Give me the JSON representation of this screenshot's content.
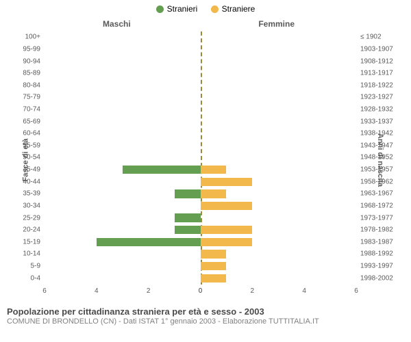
{
  "legend": {
    "male": {
      "label": "Stranieri",
      "color": "#639e51"
    },
    "female": {
      "label": "Straniere",
      "color": "#f2b84b"
    }
  },
  "columns": {
    "left": "Maschi",
    "right": "Femmine"
  },
  "axis_titles": {
    "left": "Fasce di età",
    "right": "Anni di nascita"
  },
  "chart": {
    "type": "population-pyramid",
    "x_max": 6,
    "x_ticks": [
      6,
      4,
      2,
      0,
      0,
      2,
      4,
      6
    ],
    "centerline_color": "#9a8a3a",
    "bg_color": "#ffffff",
    "rows": [
      {
        "age": "100+",
        "year": "≤ 1902",
        "m": 0,
        "f": 0
      },
      {
        "age": "95-99",
        "year": "1903-1907",
        "m": 0,
        "f": 0
      },
      {
        "age": "90-94",
        "year": "1908-1912",
        "m": 0,
        "f": 0
      },
      {
        "age": "85-89",
        "year": "1913-1917",
        "m": 0,
        "f": 0
      },
      {
        "age": "80-84",
        "year": "1918-1922",
        "m": 0,
        "f": 0
      },
      {
        "age": "75-79",
        "year": "1923-1927",
        "m": 0,
        "f": 0
      },
      {
        "age": "70-74",
        "year": "1928-1932",
        "m": 0,
        "f": 0
      },
      {
        "age": "65-69",
        "year": "1933-1937",
        "m": 0,
        "f": 0
      },
      {
        "age": "60-64",
        "year": "1938-1942",
        "m": 0,
        "f": 0
      },
      {
        "age": "55-59",
        "year": "1943-1947",
        "m": 0,
        "f": 0
      },
      {
        "age": "50-54",
        "year": "1948-1952",
        "m": 0,
        "f": 0
      },
      {
        "age": "45-49",
        "year": "1953-1957",
        "m": 3,
        "f": 1
      },
      {
        "age": "40-44",
        "year": "1958-1962",
        "m": 0,
        "f": 2
      },
      {
        "age": "35-39",
        "year": "1963-1967",
        "m": 1,
        "f": 1
      },
      {
        "age": "30-34",
        "year": "1968-1972",
        "m": 0,
        "f": 2
      },
      {
        "age": "25-29",
        "year": "1973-1977",
        "m": 1,
        "f": 0
      },
      {
        "age": "20-24",
        "year": "1978-1982",
        "m": 1,
        "f": 2
      },
      {
        "age": "15-19",
        "year": "1983-1987",
        "m": 4,
        "f": 2
      },
      {
        "age": "10-14",
        "year": "1988-1992",
        "m": 0,
        "f": 1
      },
      {
        "age": "5-9",
        "year": "1993-1997",
        "m": 0,
        "f": 1
      },
      {
        "age": "0-4",
        "year": "1998-2002",
        "m": 0,
        "f": 1
      }
    ]
  },
  "footer": {
    "title": "Popolazione per cittadinanza straniera per età e sesso - 2003",
    "subtitle": "COMUNE DI BRONDELLO (CN) - Dati ISTAT 1° gennaio 2003 - Elaborazione TUTTITALIA.IT"
  }
}
